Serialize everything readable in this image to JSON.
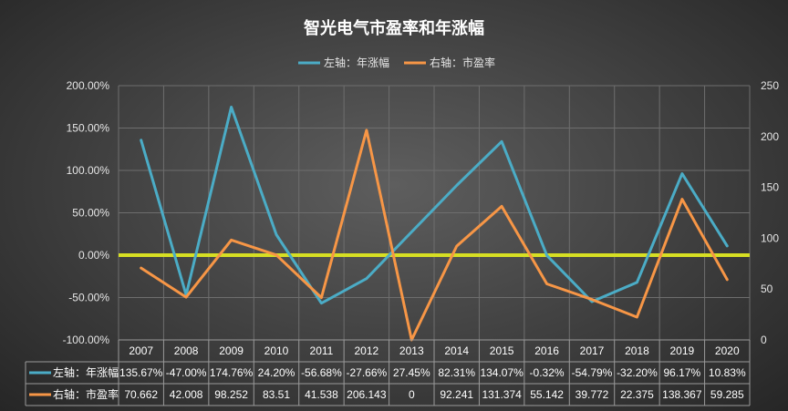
{
  "chart_data": {
    "type": "line",
    "title": "智光电气市盈率和年涨幅",
    "categories": [
      "2007",
      "2008",
      "2009",
      "2010",
      "2011",
      "2012",
      "2013",
      "2014",
      "2015",
      "2016",
      "2017",
      "2018",
      "2019",
      "2020"
    ],
    "series": [
      {
        "name": "左轴：年涨幅",
        "axis": "left",
        "color": "#4bacc6",
        "values": [
          135.67,
          -47.0,
          174.76,
          24.2,
          -56.68,
          -27.66,
          27.45,
          82.31,
          134.07,
          -0.32,
          -54.79,
          -32.2,
          96.17,
          10.83
        ],
        "labels": [
          "135.67%",
          "-47.00%",
          "174.76%",
          "24.20%",
          "-56.68%",
          "-27.66%",
          "27.45%",
          "82.31%",
          "134.07%",
          "-0.32%",
          "-54.79%",
          "-32.20%",
          "96.17%",
          "10.83%"
        ]
      },
      {
        "name": "右轴：市盈率",
        "axis": "right",
        "color": "#f79646",
        "values": [
          70.662,
          42.008,
          98.252,
          83.51,
          41.538,
          206.143,
          0,
          92.241,
          131.374,
          55.142,
          39.772,
          22.375,
          138.367,
          59.285
        ],
        "labels": [
          "70.662",
          "42.008",
          "98.252",
          "83.51",
          "41.538",
          "206.143",
          "0",
          "92.241",
          "131.374",
          "55.142",
          "39.772",
          "22.375",
          "138.367",
          "59.285"
        ]
      }
    ],
    "y_left": {
      "ylim": [
        -100,
        200
      ],
      "ticks": [
        "-100.00%",
        "-50.00%",
        "0.00%",
        "50.00%",
        "100.00%",
        "150.00%",
        "200.00%"
      ]
    },
    "y_right": {
      "ylim": [
        0,
        250
      ],
      "ticks": [
        "0",
        "50",
        "100",
        "150",
        "200",
        "250"
      ]
    },
    "zero_line_color": "#d7df23",
    "legend_position": "top-center",
    "grid": true,
    "data_table": true
  }
}
